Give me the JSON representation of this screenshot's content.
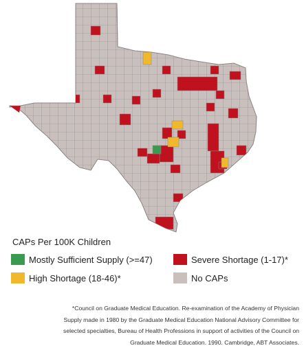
{
  "legend": {
    "title": "CAPs Per 100K Children",
    "items": [
      {
        "key": "mostly_sufficient",
        "label": "Mostly Sufficient Supply (>=47)",
        "color": "#3a9a4f"
      },
      {
        "key": "severe",
        "label": "Severe Shortage (1-17)*",
        "color": "#c0111f"
      },
      {
        "key": "high",
        "label": "High Shortage (18-46)*",
        "color": "#f2b82d"
      },
      {
        "key": "none",
        "label": "No CAPs",
        "color": "#c9c0bd"
      }
    ]
  },
  "map": {
    "region": "Texas counties",
    "border_color": "#8a8584"
  },
  "footnote": [
    "*Council on Graduate Medical Education. Re-examination of the Academy of Physician",
    "Supply made in 1980 by the Graduate Medical Education National Advisory Committee for",
    "selected specialties, Bureau of Health Professions in support of activities of the Council on",
    "Graduate Medical Education. 1990. Cambridge, ABT Associates."
  ]
}
